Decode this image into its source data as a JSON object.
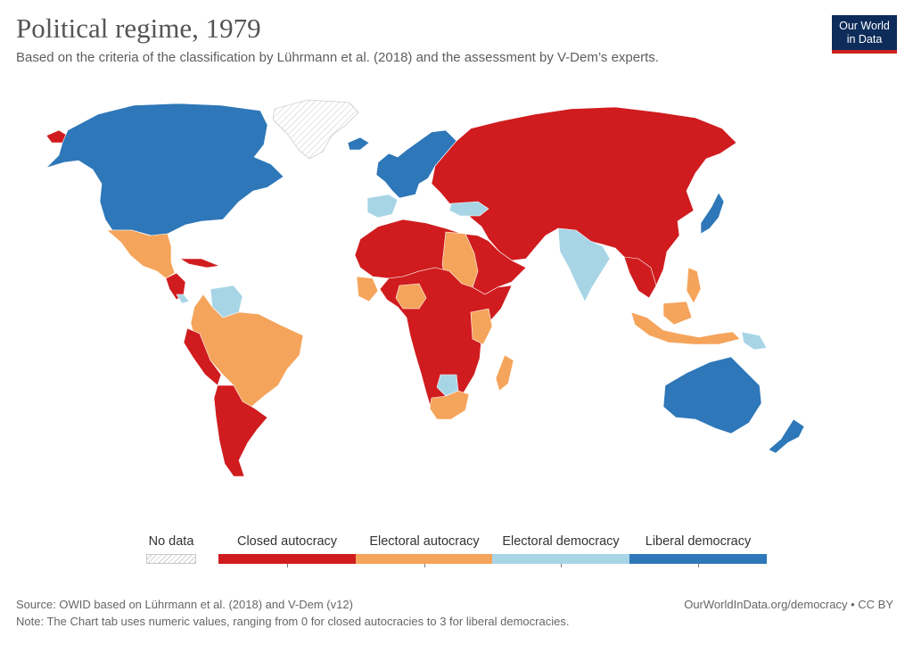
{
  "header": {
    "title": "Political regime, 1979",
    "subtitle": "Based on the criteria of the classification by Lührmann et al. (2018) and the assessment by V-Dem’s experts."
  },
  "logo": {
    "line1": "Our World",
    "line2": "in Data"
  },
  "legend": {
    "no_data_label": "No data",
    "categories": [
      {
        "label": "Closed autocracy",
        "color": "#d01c1f"
      },
      {
        "label": "Electoral autocracy",
        "color": "#f5a45b"
      },
      {
        "label": "Electoral democracy",
        "color": "#a8d5e6"
      },
      {
        "label": "Liberal democracy",
        "color": "#2e77b8"
      }
    ]
  },
  "colors": {
    "closed_autocracy": "#d01c1f",
    "electoral_autocracy": "#f5a45b",
    "electoral_democracy": "#a8d5e6",
    "liberal_democracy": "#2e77b8",
    "no_data": "#e4e4e4"
  },
  "footer": {
    "source": "Source: OWID based on Lührmann et al. (2018) and V-Dem (v12)",
    "url": "OurWorldInData.org/democracy • CC BY",
    "note": "Note: The Chart tab uses numeric values, ranging from 0 for closed autocracies to 3 for liberal democracies."
  }
}
